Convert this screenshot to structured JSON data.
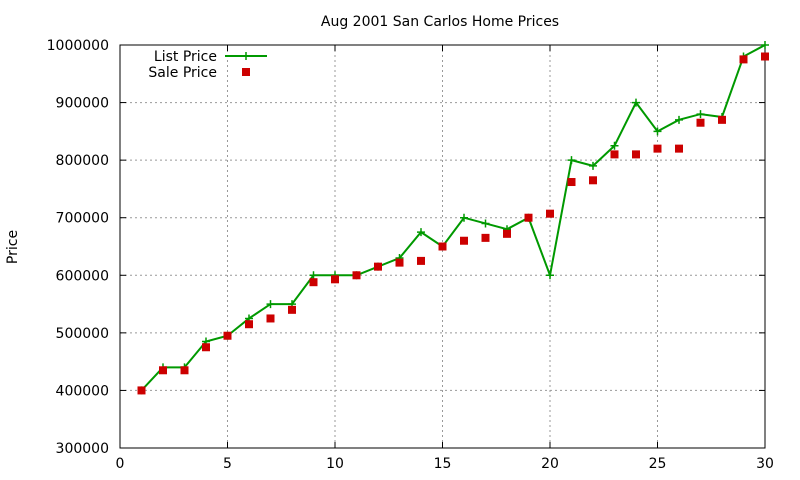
{
  "chart_data": {
    "type": "line",
    "title": "Aug 2001 San Carlos Home Prices",
    "xlabel": "",
    "ylabel": "Price",
    "xlim": [
      0,
      30
    ],
    "ylim": [
      300000,
      1000000
    ],
    "x_ticks": [
      0,
      5,
      10,
      15,
      20,
      25,
      30
    ],
    "y_ticks": [
      300000,
      400000,
      500000,
      600000,
      700000,
      800000,
      900000,
      1000000
    ],
    "grid": true,
    "legend_position": "top-left",
    "series": [
      {
        "name": "List Price",
        "style": "line-plus",
        "color": "#009900",
        "x": [
          1,
          2,
          3,
          4,
          5,
          6,
          7,
          8,
          9,
          10,
          11,
          12,
          13,
          14,
          15,
          16,
          17,
          18,
          19,
          20,
          21,
          22,
          23,
          24,
          25,
          26,
          27,
          28,
          29,
          30
        ],
        "y": [
          400000,
          440000,
          440000,
          485000,
          495000,
          525000,
          550000,
          550000,
          600000,
          600000,
          600000,
          615000,
          630000,
          675000,
          650000,
          700000,
          690000,
          680000,
          700000,
          600000,
          800000,
          790000,
          825000,
          900000,
          850000,
          870000,
          880000,
          875000,
          980000,
          1000000
        ]
      },
      {
        "name": "Sale Price",
        "style": "points-square",
        "color": "#cc0000",
        "x": [
          1,
          2,
          3,
          4,
          5,
          6,
          7,
          8,
          9,
          10,
          11,
          12,
          13,
          14,
          15,
          16,
          17,
          18,
          19,
          20,
          21,
          22,
          23,
          24,
          25,
          26,
          27,
          28,
          29,
          30
        ],
        "y": [
          400000,
          435000,
          435000,
          475000,
          495000,
          515000,
          525000,
          540000,
          588000,
          593000,
          600000,
          615000,
          622000,
          625000,
          650000,
          660000,
          665000,
          672000,
          700000,
          707000,
          762000,
          765000,
          810000,
          810000,
          820000,
          820000,
          865000,
          870000,
          975000,
          980000
        ]
      }
    ]
  }
}
